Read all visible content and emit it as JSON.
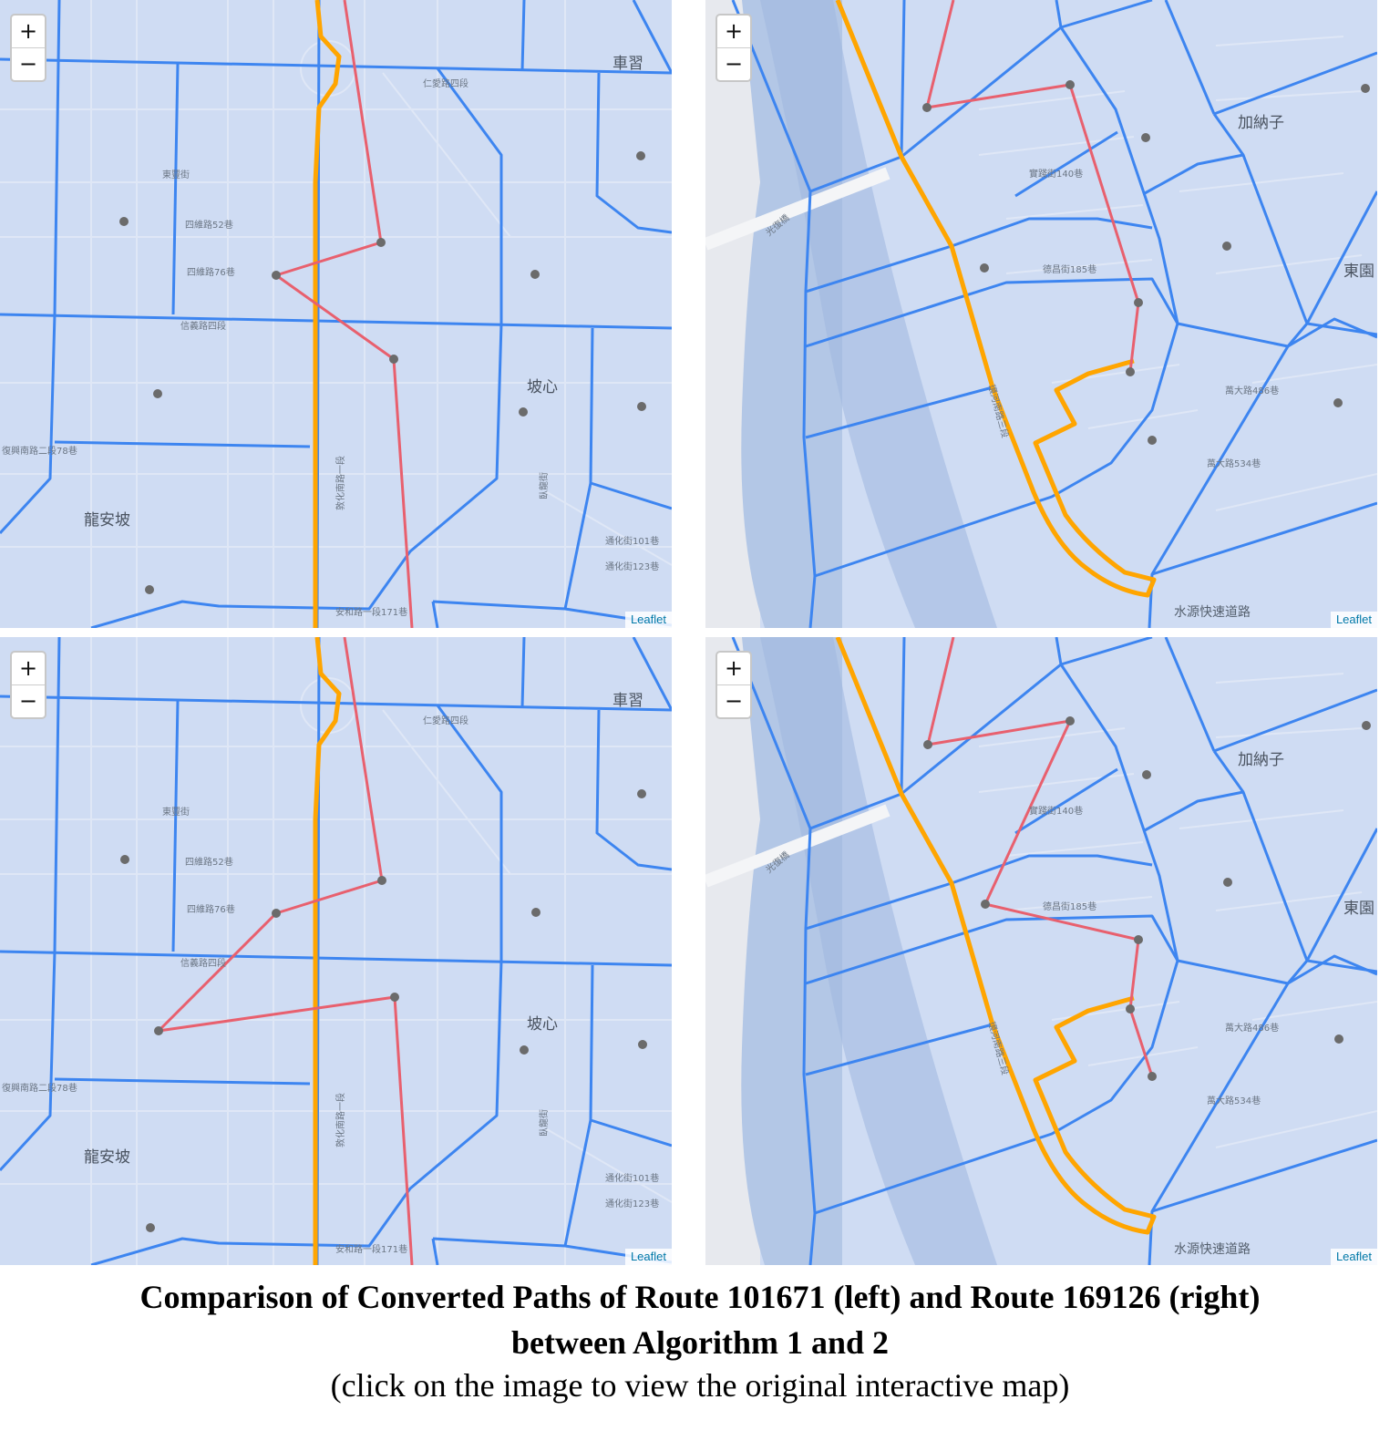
{
  "caption": {
    "line1": "Comparison of Converted Paths of Route 101671 (left) and Route 169126 (right)",
    "line2": "between Algorithm 1 and 2",
    "line3": "(click on the image to view the original interactive map)"
  },
  "zoom_controls": {
    "zoom_in": "+",
    "zoom_out": "−"
  },
  "attribution": "Leaflet",
  "colors": {
    "background": "#cfdcf3",
    "block_boundary": "#3d85f0",
    "route_path": "#ffa500",
    "converted_path": "#e8606e",
    "point": "#6b6b6b",
    "river": "#b3c7e6",
    "land": "#e7e9ee"
  },
  "maps": {
    "tl": {
      "labels": [
        "車習",
        "坡心",
        "龍安坡",
        "東豐街",
        "信義路四段",
        "四維路52巷",
        "四維路76巷",
        "復興南路二段78巷",
        "安和路一段171巷",
        "敦化南路一段",
        "通化街101巷",
        "通化街123巷",
        "臥龍街",
        "仁愛路四段"
      ]
    },
    "tr": {
      "labels": [
        "加納子",
        "東園",
        "光復橋",
        "水源快速道路",
        "萬大路486巷",
        "萬大路534巷",
        "實踐街140巷",
        "德昌街185巷",
        "環河南路三段"
      ]
    },
    "bl": {
      "labels": [
        "車習",
        "坡心",
        "龍安坡",
        "東豐街",
        "信義路四段",
        "四維路52巷",
        "四維路76巷",
        "復興南路二段78巷",
        "安和路一段171巷",
        "敦化南路一段",
        "通化街101巷",
        "通化街123巷",
        "臥龍街",
        "仁愛路四段"
      ]
    },
    "br": {
      "labels": [
        "加納子",
        "東園",
        "光復橋",
        "水源快速道路",
        "萬大路486巷",
        "萬大路534巷",
        "實踐街140巷",
        "德昌街185巷",
        "環河南路三段"
      ]
    }
  }
}
